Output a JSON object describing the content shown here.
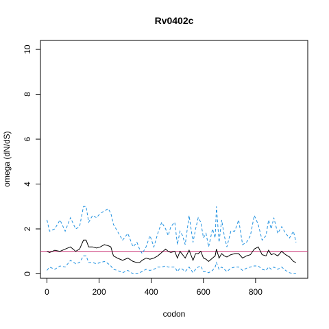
{
  "chart_data": {
    "type": "line",
    "title": "Rv0402c",
    "xlabel": "codon",
    "ylabel": "omega (dN/dS)",
    "xlim": [
      -25,
      1000
    ],
    "ylim": [
      -0.2,
      10.4
    ],
    "xticks": [
      0,
      200,
      400,
      600,
      800
    ],
    "yticks": [
      0,
      2,
      4,
      6,
      8,
      10
    ],
    "reference_line": {
      "y": 1,
      "color": "#cc3377"
    },
    "grid": false,
    "legend": "none",
    "series": [
      {
        "role": "upper",
        "style": "dashed",
        "color": "#1e90e0",
        "x": [
          0,
          10,
          30,
          50,
          70,
          90,
          110,
          125,
          140,
          150,
          160,
          175,
          190,
          205,
          220,
          235,
          245,
          255,
          270,
          290,
          310,
          330,
          345,
          355,
          365,
          380,
          395,
          410,
          425,
          440,
          455,
          465,
          475,
          490,
          500,
          510,
          520,
          530,
          545,
          560,
          570,
          580,
          590,
          600,
          610,
          620,
          635,
          645,
          650,
          660,
          670,
          680,
          690,
          705,
          720,
          735,
          750,
          765,
          780,
          795,
          810,
          825,
          840,
          850,
          860,
          870,
          885,
          900,
          915,
          930,
          945,
          955
        ],
        "y": [
          2.4,
          1.9,
          2.0,
          2.4,
          1.9,
          2.5,
          2.0,
          2.1,
          3.0,
          3.0,
          2.3,
          2.6,
          2.5,
          2.7,
          2.8,
          2.9,
          2.7,
          2.2,
          1.9,
          1.5,
          1.8,
          1.2,
          1.4,
          1.1,
          0.9,
          1.2,
          1.7,
          1.2,
          1.8,
          2.3,
          2.0,
          1.7,
          2.1,
          2.3,
          1.3,
          1.9,
          1.7,
          1.3,
          2.6,
          1.4,
          2.0,
          2.5,
          2.3,
          1.6,
          1.8,
          1.2,
          2.0,
          1.6,
          3.0,
          1.4,
          2.4,
          1.7,
          1.2,
          1.9,
          1.9,
          2.4,
          1.3,
          1.4,
          1.7,
          2.6,
          2.2,
          1.5,
          1.7,
          2.4,
          2.0,
          2.5,
          1.8,
          2.1,
          1.8,
          1.6,
          1.9,
          1.4
        ]
      },
      {
        "role": "estimate",
        "style": "solid",
        "color": "#000000",
        "x": [
          0,
          10,
          30,
          50,
          70,
          90,
          110,
          125,
          140,
          150,
          160,
          175,
          190,
          205,
          220,
          235,
          245,
          255,
          270,
          290,
          310,
          330,
          345,
          355,
          365,
          380,
          395,
          410,
          425,
          440,
          455,
          465,
          475,
          490,
          500,
          510,
          520,
          530,
          545,
          560,
          570,
          580,
          590,
          600,
          610,
          620,
          635,
          645,
          650,
          660,
          670,
          680,
          690,
          705,
          720,
          735,
          750,
          765,
          780,
          795,
          810,
          825,
          840,
          850,
          860,
          870,
          885,
          900,
          915,
          930,
          945,
          955
        ],
        "y": [
          1.0,
          0.95,
          1.05,
          1.0,
          1.1,
          1.2,
          1.0,
          1.1,
          1.5,
          1.5,
          1.2,
          1.2,
          1.15,
          1.2,
          1.3,
          1.25,
          1.2,
          0.8,
          0.7,
          0.6,
          0.7,
          0.55,
          0.5,
          0.5,
          0.6,
          0.7,
          0.65,
          0.7,
          0.8,
          0.95,
          1.1,
          1.0,
          0.95,
          1.0,
          0.7,
          1.0,
          0.85,
          0.7,
          1.05,
          0.6,
          0.9,
          0.9,
          1.0,
          0.7,
          0.65,
          0.55,
          0.7,
          0.8,
          1.1,
          0.7,
          0.9,
          0.8,
          0.75,
          0.85,
          0.9,
          0.9,
          0.7,
          0.8,
          0.85,
          1.1,
          1.2,
          0.85,
          0.8,
          1.05,
          0.85,
          0.9,
          0.8,
          1.0,
          0.85,
          0.75,
          0.55,
          0.5
        ]
      },
      {
        "role": "lower",
        "style": "dashed",
        "color": "#1e90e0",
        "x": [
          0,
          10,
          30,
          50,
          70,
          90,
          110,
          125,
          140,
          150,
          160,
          175,
          190,
          205,
          220,
          235,
          245,
          255,
          270,
          290,
          310,
          330,
          345,
          355,
          365,
          380,
          395,
          410,
          425,
          440,
          455,
          465,
          475,
          490,
          500,
          510,
          520,
          530,
          545,
          560,
          570,
          580,
          590,
          600,
          610,
          620,
          635,
          645,
          650,
          660,
          670,
          680,
          690,
          705,
          720,
          735,
          750,
          765,
          780,
          795,
          810,
          825,
          840,
          850,
          860,
          870,
          885,
          900,
          915,
          930,
          945,
          955
        ],
        "y": [
          0.15,
          0.3,
          0.2,
          0.35,
          0.3,
          0.6,
          0.45,
          0.5,
          0.8,
          0.8,
          0.5,
          0.5,
          0.45,
          0.5,
          0.55,
          0.45,
          0.35,
          0.2,
          0.15,
          0.05,
          0.15,
          0.0,
          0.0,
          0.05,
          0.1,
          0.2,
          0.15,
          0.2,
          0.3,
          0.3,
          0.35,
          0.3,
          0.3,
          0.3,
          0.1,
          0.25,
          0.2,
          0.1,
          0.3,
          0.05,
          0.2,
          0.3,
          0.35,
          0.1,
          0.1,
          0.05,
          0.15,
          0.3,
          0.5,
          0.2,
          0.3,
          0.2,
          0.1,
          0.25,
          0.3,
          0.3,
          0.15,
          0.25,
          0.3,
          0.35,
          0.35,
          0.2,
          0.15,
          0.3,
          0.2,
          0.3,
          0.2,
          0.3,
          0.15,
          0.05,
          0.0,
          0.0
        ]
      }
    ]
  }
}
